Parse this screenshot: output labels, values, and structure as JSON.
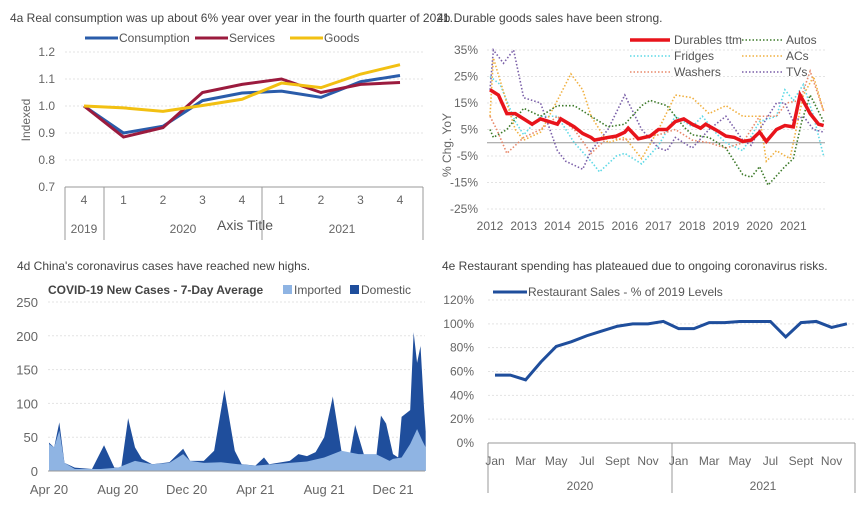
{
  "chart_data": [
    {
      "id": "4a",
      "type": "line",
      "title": "4a Real consumption was up about 6% year over year in the fourth quarter of 2021.",
      "ylabel": "Indexed",
      "xlabel": "Axis Title",
      "ylim": [
        0.7,
        1.2
      ],
      "yticks": [
        "1.2",
        "1.1",
        "1.0",
        "0.9",
        "0.8",
        "0.7"
      ],
      "categories": [
        "4",
        "1",
        "2",
        "3",
        "4",
        "1",
        "2",
        "3",
        "4"
      ],
      "year_groups": [
        {
          "label": "2019",
          "span": 1
        },
        {
          "label": "2020",
          "span": 4
        },
        {
          "label": "2021",
          "span": 4
        }
      ],
      "series": [
        {
          "name": "Consumption",
          "color": "#2a5caa",
          "values": [
            1.0,
            0.9,
            0.925,
            1.02,
            1.048,
            1.055,
            1.032,
            1.09,
            1.113
          ]
        },
        {
          "name": "Services",
          "color": "#9b1b3e",
          "values": [
            1.0,
            0.885,
            0.92,
            1.05,
            1.08,
            1.1,
            1.05,
            1.08,
            1.087
          ]
        },
        {
          "name": "Goods",
          "color": "#f2c012",
          "values": [
            1.0,
            0.993,
            0.98,
            1.002,
            1.025,
            1.085,
            1.068,
            1.118,
            1.153
          ]
        }
      ]
    },
    {
      "id": "4b",
      "type": "line",
      "title": "4b Durable goods sales have been strong.",
      "ylabel": "% Chg. YoY",
      "ylim": [
        -25,
        35
      ],
      "yticks": [
        "35%",
        "25%",
        "15%",
        "5%",
        "-5%",
        "-15%",
        "-25%"
      ],
      "xticks": [
        "2012",
        "2013",
        "2014",
        "2015",
        "2016",
        "2017",
        "2018",
        "2019",
        "2020",
        "2021"
      ],
      "series": [
        {
          "name": "Fridges",
          "color": "#5fd9e6",
          "style": "dotted",
          "x": [
            2012,
            2012.3,
            2012.75,
            2013,
            2013.5,
            2014,
            2014.5,
            2015,
            2015.25,
            2015.75,
            2016,
            2016.5,
            2017,
            2017.5,
            2018,
            2018.3,
            2018.75,
            2019,
            2019.5,
            2020,
            2020.5,
            2020.75,
            2021,
            2021.3,
            2021.6,
            2021.9
          ],
          "values": [
            25,
            22,
            8,
            3,
            10,
            10,
            0,
            -7,
            -11,
            -5,
            -4,
            -8,
            -1,
            10,
            6,
            10,
            3,
            0,
            -3,
            8,
            10,
            20,
            16,
            22,
            10,
            -5
          ]
        },
        {
          "name": "Washers",
          "color": "#e8896a",
          "style": "dotted",
          "x": [
            2012,
            2012.2,
            2012.5,
            2013,
            2013.5,
            2014,
            2014.5,
            2015,
            2015.5,
            2016,
            2016.5,
            2017,
            2017.5,
            2018,
            2018.5,
            2019,
            2019.5,
            2020,
            2020.5,
            2020.8,
            2021.2,
            2021.5,
            2021.9
          ],
          "values": [
            10,
            5,
            -4,
            2,
            5,
            10,
            5,
            -4,
            2,
            1,
            2,
            3,
            5,
            1,
            0,
            -2,
            0,
            10,
            10,
            15,
            16,
            27,
            12
          ]
        },
        {
          "name": "ACs",
          "color": "#f0b040",
          "style": "dotted",
          "x": [
            2012,
            2012.1,
            2012.5,
            2012.75,
            2013,
            2013.5,
            2014,
            2014.4,
            2014.75,
            2015,
            2015.5,
            2016,
            2016.5,
            2017,
            2017.5,
            2018,
            2018.5,
            2019,
            2019.5,
            2020,
            2020.2,
            2020.5,
            2020.9,
            2021.3,
            2021.6,
            2021.9
          ],
          "values": [
            10,
            32,
            15,
            5,
            1,
            4,
            16,
            26,
            20,
            10,
            0,
            2,
            -6,
            5,
            18,
            17,
            11,
            14,
            10,
            10,
            -7,
            -3,
            -6,
            18,
            25,
            12
          ]
        },
        {
          "name": "TVs",
          "color": "#7a5fa8",
          "style": "dotted",
          "x": [
            2012,
            2012.1,
            2012.4,
            2012.7,
            2013,
            2013.5,
            2014,
            2014.25,
            2014.75,
            2015,
            2015.5,
            2016,
            2016.5,
            2017,
            2017.25,
            2017.5,
            2018,
            2018.5,
            2019,
            2019.5,
            2019.75,
            2020,
            2020.5,
            2020.75,
            2021,
            2021.3,
            2021.6,
            2021.9
          ],
          "values": [
            20,
            35,
            30,
            35,
            17,
            15,
            -3,
            -7,
            -10,
            -3,
            5,
            18,
            5,
            -2,
            -3,
            2,
            -2,
            5,
            10,
            1,
            -1,
            5,
            15,
            15,
            8,
            10,
            5,
            4
          ]
        },
        {
          "name": "Autos",
          "color": "#3d7a2a",
          "style": "dotted",
          "x": [
            2012,
            2012.1,
            2012.5,
            2013,
            2013.5,
            2014,
            2014.5,
            2015,
            2015.5,
            2016,
            2016.5,
            2016.75,
            2017.25,
            2017.75,
            2018,
            2018.5,
            2019,
            2019.5,
            2019.75,
            2020,
            2020.25,
            2020.75,
            2021,
            2021.25,
            2021.5,
            2021.9
          ],
          "values": [
            5,
            2,
            5,
            13,
            10,
            14,
            14,
            10,
            6,
            7,
            14,
            16,
            14,
            6,
            3,
            2,
            -2,
            -12,
            -13,
            -9,
            -16,
            -9,
            -6,
            8,
            18,
            8
          ]
        },
        {
          "name": "Durables ttm",
          "color": "#e8141b",
          "style": "solid",
          "x": [
            2012,
            2012.25,
            2012.5,
            2012.75,
            2013,
            2013.25,
            2013.5,
            2013.75,
            2014,
            2014.1,
            2014.5,
            2014.75,
            2015,
            2015.1,
            2015.5,
            2015.75,
            2016,
            2016.1,
            2016.4,
            2016.75,
            2017,
            2017.25,
            2017.5,
            2017.75,
            2018,
            2018.25,
            2018.4,
            2018.75,
            2019,
            2019.25,
            2019.5,
            2019.75,
            2020,
            2020.2,
            2020.5,
            2020.75,
            2021,
            2021.2,
            2021.5,
            2021.75,
            2021.9
          ],
          "values": [
            20,
            18,
            11,
            11,
            9,
            7,
            9,
            8,
            7,
            9,
            6,
            3.5,
            2,
            1,
            2,
            2.5,
            4,
            5.5,
            1.5,
            2.5,
            5,
            5,
            8,
            9,
            7,
            5.5,
            7,
            4.5,
            2.5,
            2,
            0.5,
            1,
            4,
            0.5,
            5,
            6.5,
            6,
            18,
            11,
            7,
            6.5
          ]
        }
      ],
      "legend_order": [
        "Durables ttm",
        "Autos",
        "Fridges",
        "ACs",
        "Washers",
        "TVs"
      ]
    },
    {
      "id": "4d",
      "type": "area",
      "title": "4d China's coronavirus cases have reached new highs.",
      "subtitle": "COVID-19 New Cases - 7-Day Average",
      "ylim": [
        0,
        250
      ],
      "yticks": [
        "250",
        "200",
        "150",
        "100",
        "50",
        "0"
      ],
      "xticks": [
        "Apr 20",
        "Aug 20",
        "Dec 20",
        "Apr 21",
        "Aug 21",
        "Dec 21"
      ],
      "x_unit": "months since Apr 2020",
      "series": [
        {
          "name": "Imported",
          "color": "#8fb4e3",
          "x": [
            0,
            0.3,
            0.6,
            0.9,
            1.5,
            3,
            4,
            5,
            6,
            7,
            7.8,
            8.2,
            9,
            10,
            11,
            12,
            13,
            14,
            15,
            16,
            17,
            18,
            19,
            19.8,
            20,
            20.5,
            21,
            21.4,
            21.7,
            21.9
          ],
          "values": [
            40,
            35,
            60,
            12,
            3,
            3,
            5,
            15,
            10,
            12,
            25,
            15,
            12,
            13,
            10,
            8,
            10,
            12,
            14,
            20,
            30,
            25,
            25,
            15,
            18,
            20,
            40,
            62,
            45,
            35
          ]
        },
        {
          "name": "Domestic",
          "color": "#1f4e9c",
          "stacked_total": true,
          "x": [
            0,
            0.3,
            0.6,
            0.9,
            1.5,
            2.5,
            3.2,
            3.8,
            4.2,
            4.6,
            5,
            5.4,
            6,
            7,
            7.8,
            8.2,
            9,
            9.6,
            10.2,
            10.8,
            11.2,
            12,
            12.5,
            12.8,
            14,
            14.5,
            15,
            15.5,
            16,
            16.5,
            17,
            17.5,
            17.8,
            18.3,
            19,
            19.3,
            19.6,
            20,
            20.3,
            20.5,
            21,
            21.2,
            21.4,
            21.6,
            21.8,
            21.9
          ],
          "values": [
            42,
            35,
            72,
            12,
            5,
            3,
            38,
            5,
            5,
            78,
            35,
            18,
            10,
            13,
            33,
            15,
            15,
            30,
            120,
            30,
            10,
            8,
            20,
            10,
            15,
            25,
            22,
            28,
            50,
            110,
            30,
            25,
            68,
            25,
            15,
            82,
            70,
            25,
            20,
            80,
            90,
            205,
            160,
            185,
            95,
            58
          ]
        }
      ]
    },
    {
      "id": "4e",
      "type": "line",
      "title": "4e Restaurant spending has plateaued due to ongoing coronavirus risks.",
      "ylim": [
        0,
        120
      ],
      "yticks": [
        "120%",
        "100%",
        "80%",
        "60%",
        "40%",
        "20%",
        "0%"
      ],
      "xtick_labels": [
        "Jan",
        "Mar",
        "May",
        "Jul",
        "Sept",
        "Nov",
        "Jan",
        "Mar",
        "May",
        "Jul",
        "Sept",
        "Nov"
      ],
      "year_groups": [
        "2020",
        "2021"
      ],
      "series": [
        {
          "name": "Restaurant Sales - % of 2019 Levels",
          "color": "#1f4e9c",
          "values": [
            57,
            57,
            53,
            68,
            81,
            85,
            90,
            94,
            98,
            100,
            100,
            102,
            96,
            96,
            101,
            101,
            102,
            102,
            102,
            89,
            101,
            102,
            97,
            100
          ]
        }
      ]
    }
  ]
}
